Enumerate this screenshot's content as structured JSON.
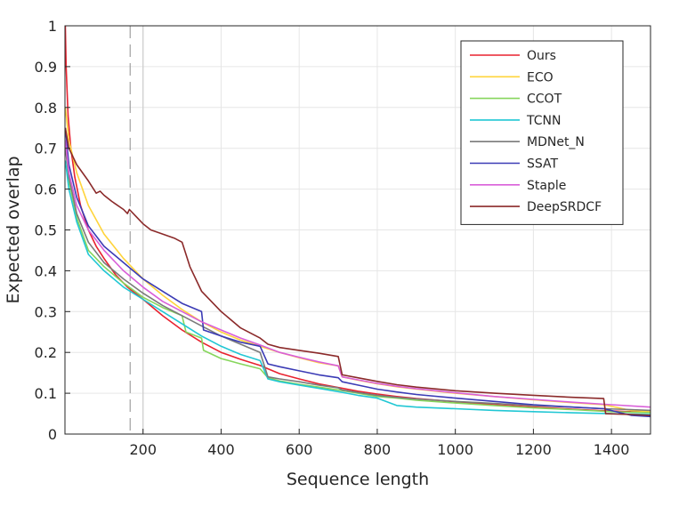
{
  "chart_data": {
    "type": "line",
    "xlabel": "Sequence length",
    "ylabel": "Expected overlap",
    "xlim": [
      0,
      1500
    ],
    "ylim": [
      0,
      1
    ],
    "xticks": [
      200,
      400,
      600,
      800,
      1000,
      1200,
      1400
    ],
    "yticks": [
      0,
      0.1,
      0.2,
      0.3,
      0.4,
      0.5,
      0.6,
      0.7,
      0.8,
      0.9,
      1
    ],
    "ytick_labels": [
      "0",
      "0.1",
      "0.2",
      "0.3",
      "0.4",
      "0.5",
      "0.6",
      "0.7",
      "0.8",
      "0.9",
      "1"
    ],
    "grid": true,
    "legend_position": "top-right",
    "vertical_markers": [
      {
        "x": 167,
        "style": "dashed",
        "color": "#a0a0a0"
      },
      {
        "x": 200,
        "style": "solid",
        "color": "#cccccc"
      }
    ],
    "series": [
      {
        "name": "Ours",
        "color": "#e8222f",
        "x": [
          1,
          3,
          8,
          15,
          25,
          40,
          60,
          80,
          100,
          130,
          160,
          200,
          250,
          300,
          350,
          400,
          450,
          500,
          520,
          550,
          600,
          650,
          700,
          750,
          800,
          850,
          900,
          1000,
          1100,
          1200,
          1300,
          1380,
          1450,
          1500
        ],
        "y": [
          1.0,
          0.9,
          0.78,
          0.7,
          0.63,
          0.56,
          0.5,
          0.46,
          0.43,
          0.39,
          0.36,
          0.33,
          0.29,
          0.255,
          0.225,
          0.2,
          0.183,
          0.168,
          0.16,
          0.148,
          0.135,
          0.123,
          0.114,
          0.105,
          0.098,
          0.092,
          0.087,
          0.079,
          0.072,
          0.066,
          0.061,
          0.057,
          0.055,
          0.053
        ]
      },
      {
        "name": "ECO",
        "color": "#ffd43b",
        "x": [
          1,
          10,
          30,
          60,
          100,
          150,
          200,
          250,
          300,
          350,
          400,
          450,
          500,
          550,
          600,
          650,
          700,
          710,
          750,
          800,
          850,
          900,
          1000,
          1100,
          1200,
          1300,
          1380,
          1450,
          1500
        ],
        "y": [
          0.8,
          0.72,
          0.64,
          0.56,
          0.49,
          0.43,
          0.38,
          0.34,
          0.305,
          0.275,
          0.25,
          0.23,
          0.215,
          0.2,
          0.187,
          0.175,
          0.167,
          0.14,
          0.132,
          0.123,
          0.116,
          0.11,
          0.1,
          0.092,
          0.084,
          0.077,
          0.072,
          0.058,
          0.055
        ]
      },
      {
        "name": "CCOT",
        "color": "#86d65c",
        "x": [
          1,
          10,
          30,
          60,
          100,
          150,
          200,
          250,
          300,
          310,
          350,
          355,
          400,
          450,
          500,
          520,
          550,
          600,
          650,
          700,
          750,
          800,
          850,
          900,
          1000,
          1100,
          1200,
          1300,
          1400,
          1500
        ],
        "y": [
          0.72,
          0.62,
          0.53,
          0.45,
          0.41,
          0.37,
          0.335,
          0.31,
          0.29,
          0.25,
          0.235,
          0.205,
          0.185,
          0.172,
          0.16,
          0.138,
          0.13,
          0.122,
          0.115,
          0.108,
          0.1,
          0.092,
          0.088,
          0.083,
          0.076,
          0.07,
          0.064,
          0.06,
          0.055,
          0.052
        ]
      },
      {
        "name": "TCNN",
        "color": "#21c7d4",
        "x": [
          1,
          10,
          30,
          60,
          100,
          150,
          200,
          250,
          300,
          350,
          400,
          450,
          500,
          520,
          550,
          600,
          650,
          700,
          750,
          800,
          850,
          900,
          1000,
          1100,
          1200,
          1300,
          1400,
          1500
        ],
        "y": [
          0.67,
          0.6,
          0.52,
          0.44,
          0.4,
          0.36,
          0.33,
          0.3,
          0.27,
          0.24,
          0.215,
          0.195,
          0.18,
          0.135,
          0.128,
          0.12,
          0.112,
          0.104,
          0.095,
          0.088,
          0.07,
          0.066,
          0.062,
          0.058,
          0.055,
          0.052,
          0.05,
          0.048
        ]
      },
      {
        "name": "MDNet_N",
        "color": "#7a7a7a",
        "x": [
          1,
          10,
          30,
          60,
          100,
          150,
          200,
          250,
          300,
          350,
          400,
          450,
          500,
          520,
          550,
          600,
          650,
          700,
          710,
          750,
          800,
          850,
          900,
          1000,
          1100,
          1200,
          1300,
          1380,
          1450,
          1500
        ],
        "y": [
          0.7,
          0.63,
          0.54,
          0.47,
          0.42,
          0.38,
          0.345,
          0.315,
          0.29,
          0.265,
          0.24,
          0.22,
          0.2,
          0.14,
          0.135,
          0.128,
          0.12,
          0.113,
          0.108,
          0.102,
          0.095,
          0.09,
          0.086,
          0.08,
          0.075,
          0.07,
          0.066,
          0.062,
          0.06,
          0.058
        ]
      },
      {
        "name": "SSAT",
        "color": "#3b3bb5",
        "x": [
          1,
          10,
          30,
          60,
          100,
          150,
          200,
          250,
          300,
          350,
          355,
          400,
          450,
          500,
          520,
          550,
          600,
          650,
          700,
          710,
          750,
          800,
          850,
          900,
          1000,
          1100,
          1200,
          1300,
          1380,
          1450,
          1500
        ],
        "y": [
          0.75,
          0.66,
          0.58,
          0.51,
          0.46,
          0.42,
          0.38,
          0.35,
          0.32,
          0.3,
          0.255,
          0.24,
          0.225,
          0.215,
          0.172,
          0.165,
          0.155,
          0.145,
          0.138,
          0.128,
          0.12,
          0.11,
          0.103,
          0.097,
          0.088,
          0.08,
          0.072,
          0.066,
          0.062,
          0.046,
          0.043
        ]
      },
      {
        "name": "Staple",
        "color": "#d95fd9",
        "x": [
          1,
          10,
          30,
          60,
          100,
          150,
          200,
          250,
          300,
          350,
          400,
          450,
          500,
          550,
          600,
          650,
          700,
          710,
          750,
          800,
          850,
          900,
          1000,
          1100,
          1200,
          1300,
          1400,
          1500
        ],
        "y": [
          0.72,
          0.64,
          0.56,
          0.5,
          0.45,
          0.4,
          0.36,
          0.325,
          0.3,
          0.275,
          0.255,
          0.235,
          0.218,
          0.2,
          0.188,
          0.177,
          0.167,
          0.14,
          0.133,
          0.124,
          0.117,
          0.111,
          0.101,
          0.092,
          0.085,
          0.078,
          0.072,
          0.066
        ]
      },
      {
        "name": "DeepSRDCF",
        "color": "#8b2a2a",
        "x": [
          1,
          10,
          30,
          60,
          80,
          90,
          100,
          120,
          150,
          160,
          165,
          180,
          200,
          220,
          250,
          280,
          300,
          310,
          320,
          350,
          400,
          450,
          500,
          520,
          550,
          600,
          650,
          700,
          710,
          750,
          800,
          850,
          900,
          1000,
          1100,
          1200,
          1300,
          1380,
          1385,
          1450,
          1500
        ],
        "y": [
          0.75,
          0.7,
          0.66,
          0.62,
          0.59,
          0.595,
          0.585,
          0.57,
          0.55,
          0.54,
          0.55,
          0.535,
          0.515,
          0.5,
          0.49,
          0.48,
          0.47,
          0.44,
          0.41,
          0.35,
          0.3,
          0.26,
          0.235,
          0.22,
          0.212,
          0.205,
          0.198,
          0.19,
          0.145,
          0.138,
          0.129,
          0.121,
          0.115,
          0.106,
          0.1,
          0.095,
          0.09,
          0.087,
          0.05,
          0.048,
          0.046
        ]
      }
    ]
  }
}
